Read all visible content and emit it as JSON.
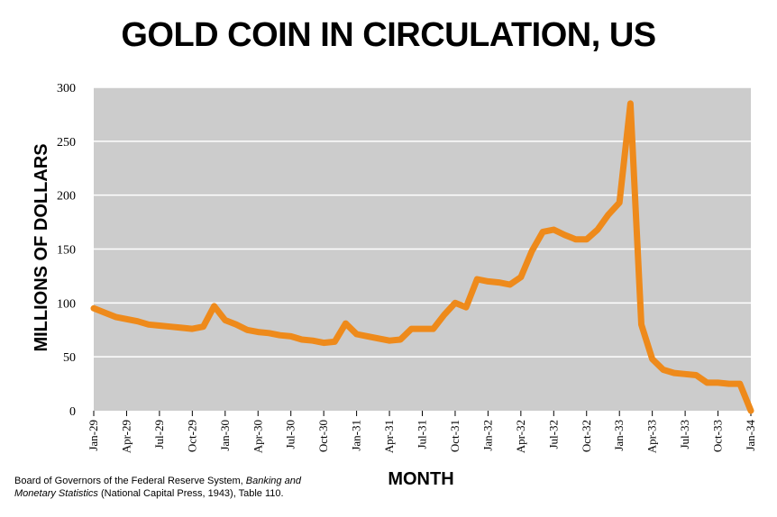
{
  "chart_data": {
    "type": "line",
    "title": "GOLD COIN IN CIRCULATION, US",
    "xlabel": "MONTH",
    "ylabel": "MILLIONS OF DOLLARS",
    "ylim": [
      0,
      300
    ],
    "yticks": [
      0,
      50,
      100,
      150,
      200,
      250,
      300
    ],
    "grid": true,
    "background_color": "#cccccc",
    "line_color": "#ee8a1b",
    "x_tick_labels": [
      "Jan-29",
      "Apr-29",
      "Jul-29",
      "Oct-29",
      "Jan-30",
      "Apr-30",
      "Jul-30",
      "Oct-30",
      "Jan-31",
      "Apr-31",
      "Jul-31",
      "Oct-31",
      "Jan-32",
      "Apr-32",
      "Jul-32",
      "Oct-32",
      "Jan-33",
      "Apr-33",
      "Jul-33",
      "Oct-33",
      "Jan-34"
    ],
    "series": [
      {
        "x": [
          "Jan-29",
          "Feb-29",
          "Mar-29",
          "Apr-29",
          "May-29",
          "Jun-29",
          "Jul-29",
          "Aug-29",
          "Sep-29",
          "Oct-29",
          "Nov-29",
          "Dec-29",
          "Jan-30",
          "Feb-30",
          "Mar-30",
          "Apr-30",
          "May-30",
          "Jun-30",
          "Jul-30",
          "Aug-30",
          "Sep-30",
          "Oct-30",
          "Nov-30",
          "Dec-30",
          "Jan-31",
          "Feb-31",
          "Mar-31",
          "Apr-31",
          "May-31",
          "Jun-31",
          "Jul-31",
          "Aug-31",
          "Sep-31",
          "Oct-31",
          "Nov-31",
          "Dec-31",
          "Jan-32",
          "Feb-32",
          "Mar-32",
          "Apr-32",
          "May-32",
          "Jun-32",
          "Jul-32",
          "Aug-32",
          "Sep-32",
          "Oct-32",
          "Nov-32",
          "Dec-32",
          "Jan-33",
          "Feb-33",
          "Mar-33",
          "Apr-33",
          "May-33",
          "Jun-33",
          "Jul-33",
          "Aug-33",
          "Sep-33",
          "Oct-33",
          "Nov-33",
          "Dec-33",
          "Jan-34"
        ],
        "values": [
          95,
          91,
          87,
          85,
          83,
          80,
          79,
          78,
          77,
          76,
          78,
          97,
          84,
          80,
          75,
          73,
          72,
          70,
          69,
          66,
          65,
          63,
          64,
          81,
          71,
          69,
          67,
          65,
          66,
          76,
          76,
          76,
          89,
          100,
          96,
          122,
          120,
          119,
          117,
          124,
          148,
          166,
          168,
          163,
          159,
          159,
          168,
          182,
          193,
          285,
          80,
          48,
          38,
          35,
          34,
          33,
          26,
          26,
          25,
          25,
          0
        ]
      }
    ]
  },
  "source_note": {
    "line1_text": "Board of Governors of the Federal Reserve System, ",
    "line1_italic": "Banking and",
    "line2_italic": "Monetary Statistics",
    "line2_text": " (National Capital Press, 1943), Table 110."
  }
}
